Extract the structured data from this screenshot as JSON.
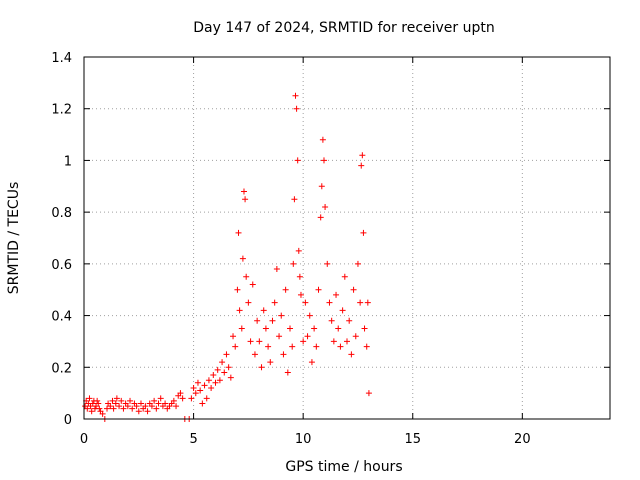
{
  "chart_data": {
    "type": "scatter",
    "title": "Day 147 of 2024, SRMTID for receiver uptn",
    "xlabel": "GPS time / hours",
    "ylabel": "SRMTID / TECUs",
    "xlim": [
      0,
      24
    ],
    "ylim": [
      0,
      1.4
    ],
    "xticks": [
      0,
      5,
      10,
      15,
      20
    ],
    "xtick_labels": [
      "0",
      "5",
      "10",
      "15",
      "20"
    ],
    "yticks": [
      0,
      0.2,
      0.4,
      0.6,
      0.8,
      1.0,
      1.2,
      1.4
    ],
    "ytick_labels": [
      "0",
      "0.2",
      "0.4",
      "0.6",
      "0.8",
      "1",
      "1.2",
      "1.4"
    ],
    "grid": true,
    "marker": "+",
    "color": "#ff0000",
    "series": [
      {
        "name": "SRMTID",
        "points": [
          [
            0.05,
            0.05
          ],
          [
            0.1,
            0.07
          ],
          [
            0.15,
            0.04
          ],
          [
            0.2,
            0.06
          ],
          [
            0.25,
            0.08
          ],
          [
            0.3,
            0.05
          ],
          [
            0.35,
            0.03
          ],
          [
            0.4,
            0.06
          ],
          [
            0.45,
            0.07
          ],
          [
            0.5,
            0.04
          ],
          [
            0.55,
            0.05
          ],
          [
            0.6,
            0.07
          ],
          [
            0.65,
            0.06
          ],
          [
            0.7,
            0.04
          ],
          [
            0.75,
            0.03
          ],
          [
            0.85,
            0.02
          ],
          [
            0.95,
            0.0
          ],
          [
            1.05,
            0.04
          ],
          [
            1.1,
            0.06
          ],
          [
            1.2,
            0.05
          ],
          [
            1.3,
            0.07
          ],
          [
            1.35,
            0.04
          ],
          [
            1.45,
            0.06
          ],
          [
            1.5,
            0.08
          ],
          [
            1.6,
            0.05
          ],
          [
            1.7,
            0.07
          ],
          [
            1.8,
            0.04
          ],
          [
            1.9,
            0.06
          ],
          [
            2.0,
            0.05
          ],
          [
            2.1,
            0.07
          ],
          [
            2.2,
            0.04
          ],
          [
            2.3,
            0.06
          ],
          [
            2.4,
            0.05
          ],
          [
            2.5,
            0.03
          ],
          [
            2.6,
            0.06
          ],
          [
            2.7,
            0.04
          ],
          [
            2.8,
            0.05
          ],
          [
            2.9,
            0.03
          ],
          [
            3.0,
            0.06
          ],
          [
            3.1,
            0.05
          ],
          [
            3.2,
            0.07
          ],
          [
            3.3,
            0.04
          ],
          [
            3.4,
            0.06
          ],
          [
            3.5,
            0.08
          ],
          [
            3.6,
            0.05
          ],
          [
            3.7,
            0.06
          ],
          [
            3.8,
            0.04
          ],
          [
            3.9,
            0.05
          ],
          [
            4.0,
            0.06
          ],
          [
            4.1,
            0.07
          ],
          [
            4.2,
            0.05
          ],
          [
            4.3,
            0.09
          ],
          [
            4.4,
            0.1
          ],
          [
            4.5,
            0.08
          ],
          [
            4.6,
            0.0
          ],
          [
            4.8,
            0.0
          ],
          [
            4.9,
            0.08
          ],
          [
            5.0,
            0.12
          ],
          [
            5.1,
            0.1
          ],
          [
            5.2,
            0.14
          ],
          [
            5.3,
            0.11
          ],
          [
            5.4,
            0.06
          ],
          [
            5.5,
            0.13
          ],
          [
            5.6,
            0.08
          ],
          [
            5.7,
            0.15
          ],
          [
            5.8,
            0.12
          ],
          [
            5.9,
            0.17
          ],
          [
            6.0,
            0.14
          ],
          [
            6.1,
            0.19
          ],
          [
            6.2,
            0.15
          ],
          [
            6.3,
            0.22
          ],
          [
            6.4,
            0.18
          ],
          [
            6.5,
            0.25
          ],
          [
            6.6,
            0.2
          ],
          [
            6.7,
            0.16
          ],
          [
            6.8,
            0.32
          ],
          [
            6.9,
            0.28
          ],
          [
            7.0,
            0.5
          ],
          [
            7.05,
            0.72
          ],
          [
            7.1,
            0.42
          ],
          [
            7.2,
            0.35
          ],
          [
            7.25,
            0.62
          ],
          [
            7.3,
            0.88
          ],
          [
            7.35,
            0.85
          ],
          [
            7.4,
            0.55
          ],
          [
            7.5,
            0.45
          ],
          [
            7.6,
            0.3
          ],
          [
            7.7,
            0.52
          ],
          [
            7.8,
            0.25
          ],
          [
            7.9,
            0.38
          ],
          [
            8.0,
            0.3
          ],
          [
            8.1,
            0.2
          ],
          [
            8.2,
            0.42
          ],
          [
            8.3,
            0.35
          ],
          [
            8.4,
            0.28
          ],
          [
            8.5,
            0.22
          ],
          [
            8.6,
            0.38
          ],
          [
            8.7,
            0.45
          ],
          [
            8.8,
            0.58
          ],
          [
            8.9,
            0.32
          ],
          [
            9.0,
            0.4
          ],
          [
            9.1,
            0.25
          ],
          [
            9.2,
            0.5
          ],
          [
            9.3,
            0.18
          ],
          [
            9.4,
            0.35
          ],
          [
            9.5,
            0.28
          ],
          [
            9.55,
            0.6
          ],
          [
            9.6,
            0.85
          ],
          [
            9.65,
            1.25
          ],
          [
            9.7,
            1.2
          ],
          [
            9.75,
            1.0
          ],
          [
            9.8,
            0.65
          ],
          [
            9.85,
            0.55
          ],
          [
            9.9,
            0.48
          ],
          [
            10.0,
            0.3
          ],
          [
            10.1,
            0.45
          ],
          [
            10.2,
            0.32
          ],
          [
            10.3,
            0.4
          ],
          [
            10.4,
            0.22
          ],
          [
            10.5,
            0.35
          ],
          [
            10.6,
            0.28
          ],
          [
            10.7,
            0.5
          ],
          [
            10.8,
            0.78
          ],
          [
            10.85,
            0.9
          ],
          [
            10.9,
            1.08
          ],
          [
            10.95,
            1.0
          ],
          [
            11.0,
            0.82
          ],
          [
            11.1,
            0.6
          ],
          [
            11.2,
            0.45
          ],
          [
            11.3,
            0.38
          ],
          [
            11.4,
            0.3
          ],
          [
            11.5,
            0.48
          ],
          [
            11.6,
            0.35
          ],
          [
            11.7,
            0.28
          ],
          [
            11.8,
            0.42
          ],
          [
            11.9,
            0.55
          ],
          [
            12.0,
            0.3
          ],
          [
            12.1,
            0.38
          ],
          [
            12.2,
            0.25
          ],
          [
            12.3,
            0.5
          ],
          [
            12.4,
            0.32
          ],
          [
            12.5,
            0.6
          ],
          [
            12.6,
            0.45
          ],
          [
            12.65,
            0.98
          ],
          [
            12.7,
            1.02
          ],
          [
            12.75,
            0.72
          ],
          [
            12.8,
            0.35
          ],
          [
            12.9,
            0.28
          ],
          [
            12.95,
            0.45
          ],
          [
            13.0,
            0.1
          ]
        ]
      }
    ]
  }
}
